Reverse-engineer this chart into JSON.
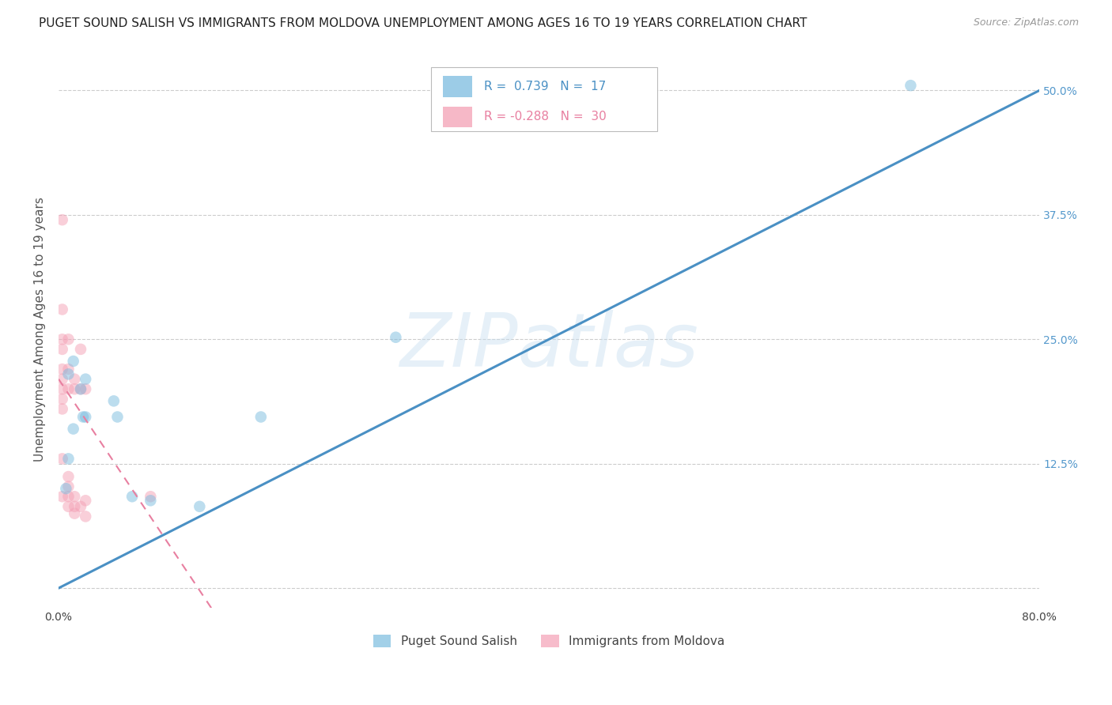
{
  "title": "PUGET SOUND SALISH VS IMMIGRANTS FROM MOLDOVA UNEMPLOYMENT AMONG AGES 16 TO 19 YEARS CORRELATION CHART",
  "source": "Source: ZipAtlas.com",
  "ylabel": "Unemployment Among Ages 16 to 19 years",
  "xlim": [
    0,
    0.8
  ],
  "ylim": [
    -0.02,
    0.54
  ],
  "xticks": [
    0.0,
    0.1,
    0.2,
    0.3,
    0.4,
    0.5,
    0.6,
    0.7,
    0.8
  ],
  "xticklabels": [
    "0.0%",
    "",
    "",
    "",
    "",
    "",
    "",
    "",
    "80.0%"
  ],
  "yticks": [
    0.0,
    0.125,
    0.25,
    0.375,
    0.5
  ],
  "yticklabels": [
    "",
    "12.5%",
    "25.0%",
    "37.5%",
    "50.0%"
  ],
  "watermark": "ZIPatlas",
  "legend_R1": "R =  0.739",
  "legend_N1": "N =  17",
  "legend_R2": "R = -0.288",
  "legend_N2": "N =  30",
  "blue_color": "#7bbcdf",
  "pink_color": "#f4a0b5",
  "blue_line_color": "#4a90c4",
  "pink_line_color": "#e87fa0",
  "label1": "Puget Sound Salish",
  "label2": "Immigrants from Moldova",
  "blue_x": [
    0.008,
    0.012,
    0.018,
    0.022,
    0.008,
    0.006,
    0.012,
    0.02,
    0.045,
    0.048,
    0.075,
    0.115,
    0.165,
    0.06,
    0.022,
    0.695,
    0.275
  ],
  "blue_y": [
    0.215,
    0.228,
    0.2,
    0.21,
    0.13,
    0.1,
    0.16,
    0.172,
    0.188,
    0.172,
    0.088,
    0.082,
    0.172,
    0.092,
    0.172,
    0.505,
    0.252
  ],
  "pink_x": [
    0.003,
    0.003,
    0.003,
    0.003,
    0.003,
    0.003,
    0.003,
    0.003,
    0.003,
    0.003,
    0.003,
    0.008,
    0.008,
    0.008,
    0.008,
    0.008,
    0.008,
    0.008,
    0.013,
    0.013,
    0.013,
    0.013,
    0.013,
    0.018,
    0.018,
    0.018,
    0.022,
    0.022,
    0.022,
    0.075
  ],
  "pink_y": [
    0.37,
    0.28,
    0.25,
    0.24,
    0.22,
    0.21,
    0.2,
    0.19,
    0.18,
    0.13,
    0.092,
    0.25,
    0.22,
    0.2,
    0.112,
    0.102,
    0.092,
    0.082,
    0.21,
    0.2,
    0.092,
    0.082,
    0.075,
    0.24,
    0.2,
    0.082,
    0.2,
    0.088,
    0.072,
    0.092
  ],
  "blue_line_x": [
    0.0,
    0.8
  ],
  "blue_line_y": [
    0.0,
    0.5
  ],
  "pink_line_x": [
    0.0,
    0.13
  ],
  "pink_line_y": [
    0.21,
    -0.03
  ],
  "dot_size": 110,
  "dot_alpha": 0.5,
  "background_color": "#ffffff",
  "grid_color": "#cccccc",
  "title_fontsize": 11,
  "axis_label_fontsize": 11,
  "tick_fontsize": 10,
  "source_fontsize": 9,
  "legend_fontsize": 11,
  "right_ytick_color": "#5599cc"
}
